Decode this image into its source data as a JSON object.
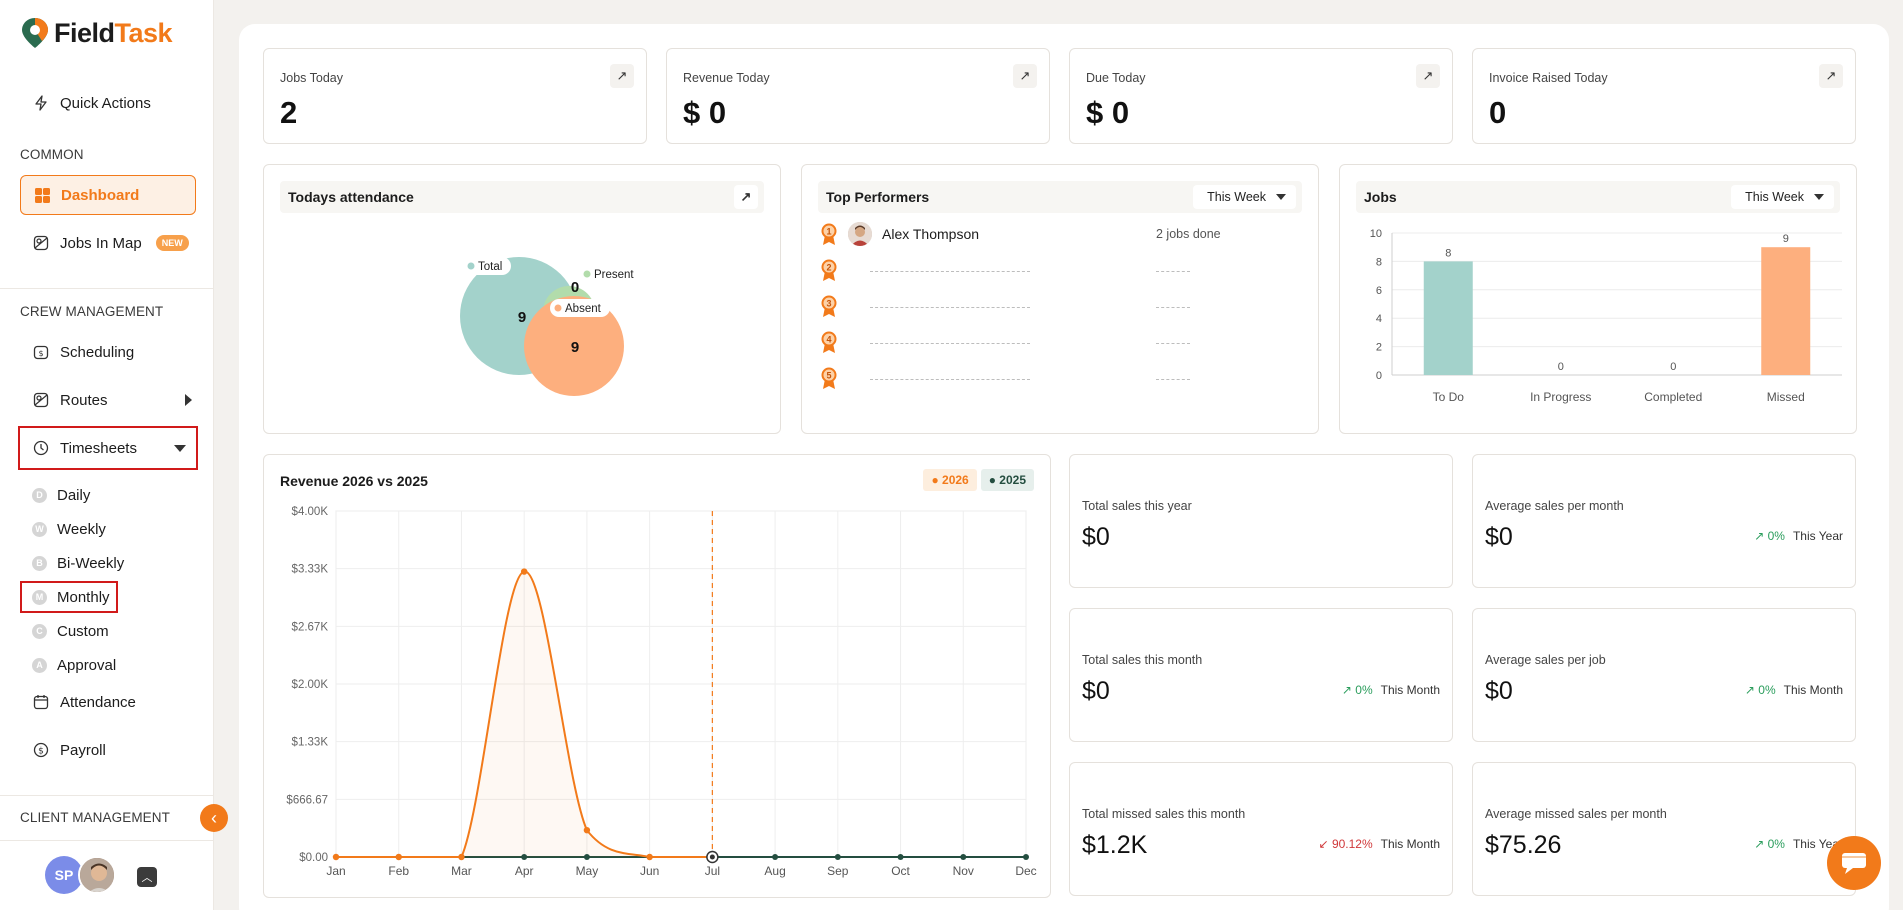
{
  "app": {
    "name_part1": "Field",
    "name_part2": "Task"
  },
  "sidebar": {
    "quick_actions": "Quick Actions",
    "section_common": "COMMON",
    "dashboard": "Dashboard",
    "jobs_in_map": "Jobs In Map",
    "new_badge": "NEW",
    "section_crew": "CREW MANAGEMENT",
    "scheduling": "Scheduling",
    "routes": "Routes",
    "timesheets": "Timesheets",
    "timesheet_items": [
      {
        "letter": "D",
        "label": "Daily"
      },
      {
        "letter": "W",
        "label": "Weekly"
      },
      {
        "letter": "B",
        "label": "Bi-Weekly"
      },
      {
        "letter": "M",
        "label": "Monthly"
      },
      {
        "letter": "C",
        "label": "Custom"
      },
      {
        "letter": "A",
        "label": "Approval"
      }
    ],
    "attendance": "Attendance",
    "payroll": "Payroll",
    "section_client": "CLIENT MANAGEMENT",
    "user_initials": "SP"
  },
  "stats": [
    {
      "label": "Jobs Today",
      "value": "2"
    },
    {
      "label": "Revenue Today",
      "value": "$ 0"
    },
    {
      "label": "Due Today",
      "value": "$ 0"
    },
    {
      "label": "Invoice Raised Today",
      "value": "0"
    }
  ],
  "attendance": {
    "title": "Todays attendance",
    "total_label": "Total",
    "total_value": "9",
    "present_label": "Present",
    "present_value": "0",
    "absent_label": "Absent",
    "absent_value": "9"
  },
  "performers": {
    "title": "Top Performers",
    "range": "This Week",
    "rows": [
      {
        "rank": "1",
        "name": "Alex Thompson",
        "jobs": "2 jobs done"
      },
      {
        "rank": "2",
        "name": "",
        "jobs": ""
      },
      {
        "rank": "3",
        "name": "",
        "jobs": ""
      },
      {
        "rank": "4",
        "name": "",
        "jobs": ""
      },
      {
        "rank": "5",
        "name": "",
        "jobs": ""
      }
    ]
  },
  "jobs_chart": {
    "title": "Jobs",
    "range": "This Week",
    "colors": {
      "To Do": "#a3d2cb",
      "Missed": "#fdaf7e"
    }
  },
  "revenue_chart": {
    "title": "Revenue 2026 vs 2025",
    "colors": {
      "2026": "#f27a1a",
      "2025": "#244e40"
    }
  },
  "metrics": [
    {
      "label": "Total sales this year",
      "value": "$0",
      "trend": "",
      "dir": "",
      "period": ""
    },
    {
      "label": "Average sales per month",
      "value": "$0",
      "trend": "0%",
      "dir": "up",
      "period": "This Year"
    },
    {
      "label": "Total sales this month",
      "value": "$0",
      "trend": "0%",
      "dir": "up",
      "period": "This Month"
    },
    {
      "label": "Average sales per job",
      "value": "$0",
      "trend": "0%",
      "dir": "up",
      "period": "This Month"
    },
    {
      "label": "Total missed sales this month",
      "value": "$1.2K",
      "trend": "90.12%",
      "dir": "down",
      "period": "This Month"
    },
    {
      "label": "Average missed sales per month",
      "value": "$75.26",
      "trend": "0%",
      "dir": "up",
      "period": "This Year"
    }
  ],
  "chart_data": [
    {
      "type": "bar",
      "title": "Jobs",
      "categories": [
        "To Do",
        "In Progress",
        "Completed",
        "Missed"
      ],
      "values": [
        8,
        0,
        0,
        9
      ],
      "ylim": [
        0,
        10
      ],
      "yticks": [
        "0",
        "2",
        "4",
        "6",
        "8",
        "10"
      ],
      "grid": true
    },
    {
      "type": "line",
      "title": "Revenue 2026 vs 2025",
      "categories": [
        "Jan",
        "Feb",
        "Mar",
        "Apr",
        "May",
        "Jun",
        "Jul",
        "Aug",
        "Sep",
        "Oct",
        "Nov",
        "Dec"
      ],
      "series": [
        {
          "name": "2026",
          "values": [
            0,
            0,
            0,
            3300,
            310,
            0,
            0,
            null,
            null,
            null,
            null,
            null
          ]
        },
        {
          "name": "2025",
          "values": [
            0,
            0,
            0,
            0,
            0,
            0,
            0,
            0,
            0,
            0,
            0,
            0
          ]
        }
      ],
      "ylim": [
        0,
        4000
      ],
      "yticks": [
        "$0.00",
        "$666.67",
        "$1.33K",
        "$2.00K",
        "$2.67K",
        "$3.33K",
        "$4.00K"
      ],
      "legend": "top-right",
      "grid": true
    }
  ]
}
